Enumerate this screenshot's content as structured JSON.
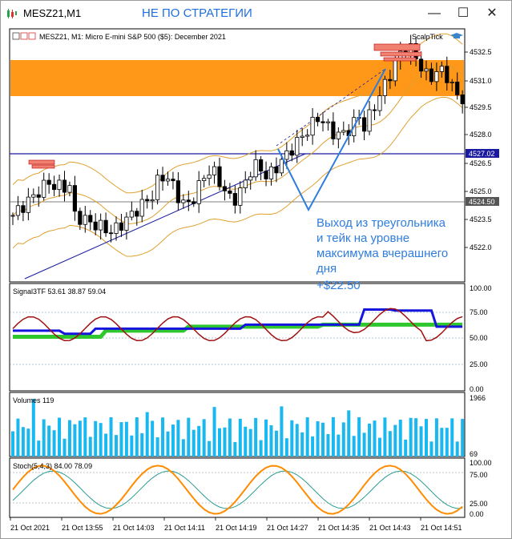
{
  "window": {
    "title": "MESZ21,M1",
    "comment": "НЕ ПО СТРАТЕГИИ",
    "controls": {
      "minimize": "—",
      "maximize": "☐",
      "close": "✕"
    }
  },
  "main_chart": {
    "header": "MESZ21, M1:  Micro E-mini S&P 500 ($5): December 2021",
    "indicator": "ScalpTick",
    "price_axis": [
      "4532.5",
      "4531.0",
      "4529.5",
      "4528.0",
      "4526.50",
      "4525.00",
      "4523.50",
      "4522.00"
    ],
    "price_axis_display": [
      "4532.5",
      "4531.0",
      "4529.5",
      "4528.0",
      "4526.5",
      "4525.0",
      "4523.5",
      "4522.0"
    ],
    "tag_blue": "4527.02",
    "tag_grey": "4524.50",
    "annotation_lines": [
      "Выход из треугольника",
      "и тейк на уровне",
      "максимума вчерашнего",
      "дня",
      "+$22.50"
    ]
  },
  "signal_panel": {
    "label": "Signal3TF 53.61 38.87 59.04",
    "axis": [
      "100.00",
      "75.00",
      "50.00",
      "25.00",
      "0.00"
    ]
  },
  "volume_panel": {
    "label": "Volumes 119",
    "axis": [
      "1966",
      "69"
    ]
  },
  "stoch_panel": {
    "label": "Stoch(5,4,3) 84.00 78.09",
    "axis": [
      "100.00",
      "75.00",
      "25.00",
      "0.00"
    ]
  },
  "time_axis": [
    "21 Oct 2021",
    "21 Oct 13:55",
    "21 Oct 14:03",
    "21 Oct 14:11",
    "21 Oct 14:19",
    "21 Oct 14:27",
    "21 Oct 14:35",
    "21 Oct 14:43",
    "21 Oct 14:51"
  ],
  "colors": {
    "bull": "#000000",
    "bear": "#000000",
    "resistance_zone": "#ff8c00",
    "support_line": "#1010a0",
    "bollinger": "#e0a030",
    "annotation": "#2f7dde",
    "volume": "#19b8f0",
    "stoch_main": "#ff8c00",
    "stoch_signal": "#2a9d8f"
  }
}
